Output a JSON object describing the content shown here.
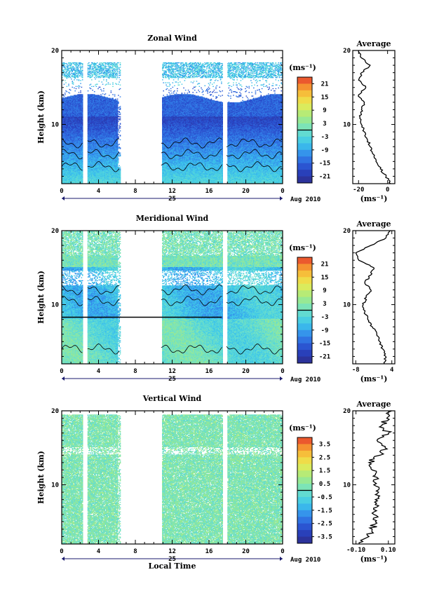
{
  "chart_data": [
    {
      "type": "heatmap",
      "title": "Zonal Wind",
      "ylabel": "Height (km)",
      "xlabel": "",
      "ylim": [
        2,
        20
      ],
      "xlim": [
        0,
        24
      ],
      "xticks": [
        "0",
        "4",
        "8",
        "12",
        "16",
        "20",
        "0"
      ],
      "yticks": [
        "10",
        "20"
      ],
      "day_label": "25",
      "month_label": "Aug 2010",
      "colorbar": {
        "unit": "(ms⁻¹)",
        "ticks": [
          "21",
          "15",
          "9",
          "3",
          "-3",
          "-9",
          "-15",
          "-21"
        ],
        "range": [
          -24,
          24
        ]
      },
      "data_gaps_hours": [
        [
          2.3,
          2.8
        ],
        [
          6.3,
          10.8
        ],
        [
          17.4,
          17.9
        ]
      ],
      "average": {
        "title": "Average",
        "unit": "(ms⁻¹)",
        "xlim": [
          -24,
          5
        ],
        "xticks": [
          "-20",
          "0"
        ],
        "yticks": [
          "10",
          "20"
        ],
        "height_km": [
          2,
          3,
          4,
          5,
          6,
          7,
          8,
          9,
          10,
          11,
          12,
          13,
          14,
          15,
          16,
          17,
          18,
          19,
          20
        ],
        "values": [
          2,
          -1,
          -5,
          -8,
          -10,
          -12,
          -14,
          -16,
          -18,
          -19,
          -18,
          -16,
          -20,
          -15,
          -20,
          -18,
          -12,
          -18,
          -20
        ]
      }
    },
    {
      "type": "heatmap",
      "title": "Meridional Wind",
      "ylabel": "Height (km)",
      "xlabel": "",
      "ylim": [
        2,
        20
      ],
      "xlim": [
        0,
        24
      ],
      "xticks": [
        "0",
        "4",
        "8",
        "12",
        "16",
        "20",
        "0"
      ],
      "yticks": [
        "10",
        "20"
      ],
      "day_label": "25",
      "month_label": "Aug 2010",
      "colorbar": {
        "unit": "(ms⁻¹)",
        "ticks": [
          "21",
          "15",
          "9",
          "3",
          "-3",
          "-9",
          "-15",
          "-21"
        ],
        "range": [
          -24,
          24
        ]
      },
      "data_gaps_hours": [
        [
          2.3,
          2.8
        ],
        [
          6.3,
          10.8
        ],
        [
          17.4,
          17.9
        ]
      ],
      "average": {
        "title": "Average",
        "unit": "(ms⁻¹)",
        "xlim": [
          -9,
          5
        ],
        "xticks": [
          "-8",
          "4"
        ],
        "yticks": [
          "10",
          "20"
        ],
        "height_km": [
          2,
          3,
          4,
          5,
          6,
          7,
          8,
          9,
          10,
          11,
          12,
          13,
          14,
          15,
          16,
          17,
          18,
          19,
          20
        ],
        "values": [
          1.5,
          2,
          1,
          0,
          -1,
          -2.5,
          -4,
          -5,
          -5.5,
          -4.5,
          -3,
          -5,
          -3,
          -2,
          -7,
          -8,
          -3,
          2,
          3.5
        ]
      }
    },
    {
      "type": "heatmap",
      "title": "Vertical Wind",
      "ylabel": "Height (km)",
      "xlabel": "Local Time",
      "ylim": [
        2,
        20
      ],
      "xlim": [
        0,
        24
      ],
      "xticks": [
        "0",
        "4",
        "8",
        "12",
        "16",
        "20",
        "0"
      ],
      "yticks": [
        "10",
        "20"
      ],
      "day_label": "25",
      "month_label": "Aug 2010",
      "colorbar": {
        "unit": "(ms⁻¹)",
        "ticks": [
          "3.5",
          "2.5",
          "1.5",
          "0.5",
          "-0.5",
          "-1.5",
          "-2.5",
          "-3.5"
        ],
        "range": [
          -4,
          4
        ]
      },
      "data_gaps_hours": [
        [
          2.3,
          2.8
        ],
        [
          6.3,
          10.8
        ],
        [
          17.4,
          17.9
        ]
      ],
      "average": {
        "title": "Average",
        "unit": "(ms⁻¹)",
        "xlim": [
          -0.12,
          0.14
        ],
        "xticks": [
          "-0.10",
          "0.10"
        ],
        "yticks": [
          "10",
          "20"
        ],
        "height_km": [
          2,
          3,
          4,
          5,
          6,
          7,
          8,
          9,
          10,
          11,
          12,
          13,
          14,
          15,
          16,
          17,
          18,
          19,
          20
        ],
        "values": [
          -0.08,
          -0.02,
          0.0,
          0.02,
          0.01,
          0.03,
          0.02,
          0.04,
          0.01,
          0.03,
          0.0,
          -0.02,
          0.05,
          0.08,
          0.03,
          0.1,
          0.06,
          0.09,
          0.12
        ]
      }
    }
  ]
}
